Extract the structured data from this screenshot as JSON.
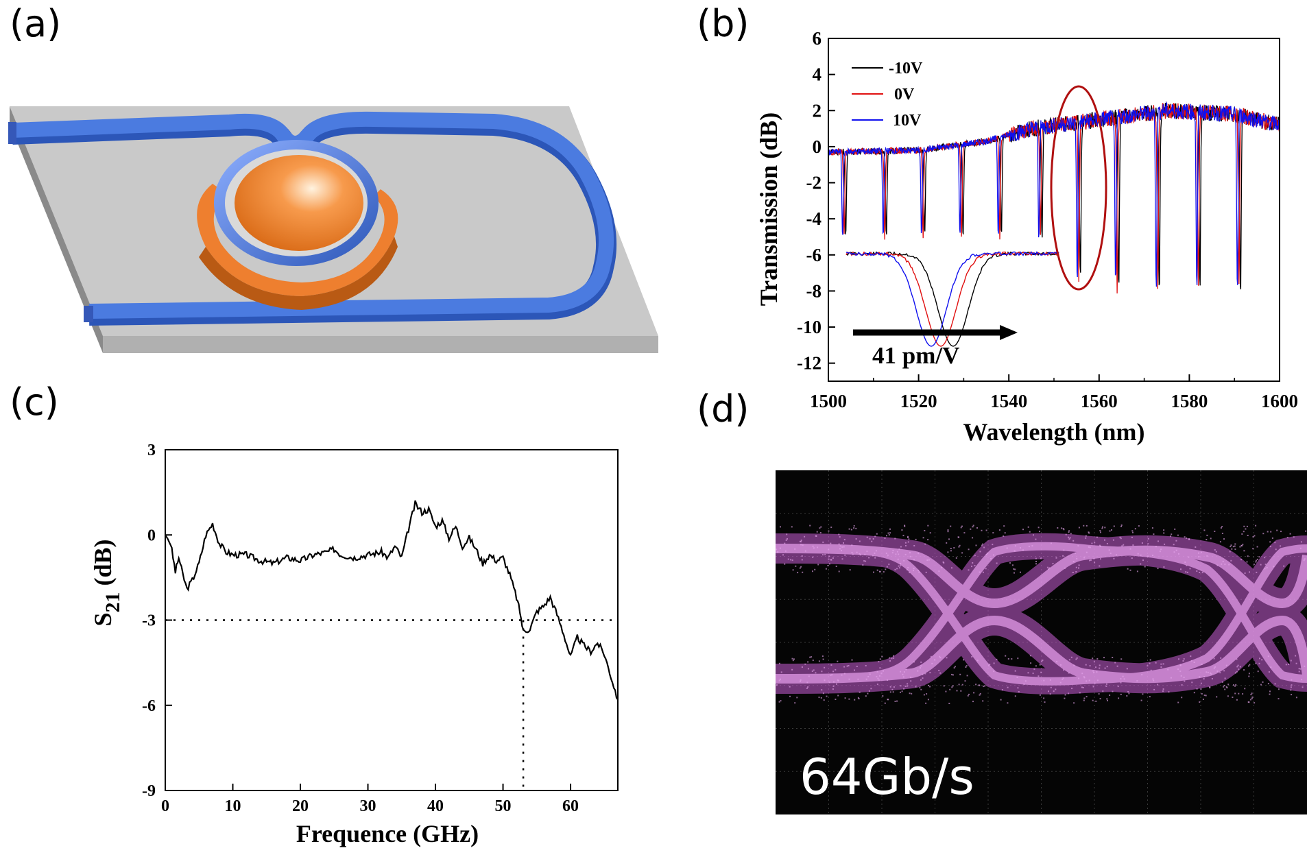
{
  "figure": {
    "panels": [
      {
        "label": "(a)"
      },
      {
        "label": "(b)"
      },
      {
        "label": "(c)"
      },
      {
        "label": "(d)"
      }
    ]
  },
  "colors": {
    "substrate": "#c9c9c9",
    "waveguide": "#3f6fd1",
    "electrode": "#ee7f2f",
    "eye": "#d070d8",
    "v_neg10": "#000000",
    "v_0": "#e01010",
    "v_10": "#1010ee",
    "ellipse": "#b01010"
  },
  "chart_data": [
    {
      "panel": "(b)",
      "type": "line",
      "xlabel": "Wavelength (nm)",
      "ylabel": "Transmission (dB)",
      "xlim": [
        1500,
        1600
      ],
      "ylim": [
        -13,
        6
      ],
      "xticks": [
        "1500",
        "1520",
        "1540",
        "1560",
        "1580",
        "1600"
      ],
      "yticks": [
        "-12",
        "-10",
        "-8",
        "-6",
        "-4",
        "-2",
        "0",
        "2",
        "4",
        "6"
      ],
      "legend": [
        "-10V",
        "0V",
        "10V"
      ],
      "legend_position": "top-left",
      "resonances_nm": [
        1503.5,
        1512.5,
        1521,
        1529.5,
        1538,
        1547,
        1555.5,
        1564,
        1573,
        1582,
        1591
      ],
      "resonance_depths_db": [
        -5,
        -5,
        -5,
        -5,
        -5,
        -5,
        -7.5,
        -8,
        -8,
        -8,
        -8
      ],
      "baseline_db": [
        [
          1500,
          -0.3
        ],
        [
          1520,
          -0.2
        ],
        [
          1535,
          0.3
        ],
        [
          1545,
          1.0
        ],
        [
          1560,
          1.5
        ],
        [
          1575,
          2.0
        ],
        [
          1590,
          1.8
        ],
        [
          1600,
          1.2
        ]
      ],
      "inset_annotation": "41 pm/V",
      "inset_min_db": [
        -11.1,
        -10.9,
        -11.0
      ]
    },
    {
      "panel": "(c)",
      "type": "line",
      "xlabel": "Frequence (GHz)",
      "ylabel_main": "S",
      "ylabel_sub": "21",
      "ylabel_unit": " (dB)",
      "xlim": [
        0,
        67
      ],
      "ylim": [
        -9,
        3
      ],
      "xticks": [
        "0",
        "10",
        "20",
        "30",
        "40",
        "50",
        "60"
      ],
      "yticks": [
        "-9",
        "-6",
        "-3",
        "0",
        "3"
      ],
      "threshold_db": -3,
      "cutoff_ghz": 53,
      "series": [
        {
          "x": [
            0,
            0.8,
            1.5,
            2,
            2.6,
            3.2,
            4,
            5,
            6,
            7,
            8,
            9,
            10,
            12,
            14,
            16,
            18,
            20,
            22,
            24,
            25,
            26,
            28,
            30,
            32,
            33,
            34,
            35,
            36,
            37,
            38,
            39,
            40,
            41,
            42,
            43,
            44,
            45,
            46,
            47,
            48,
            49,
            50,
            51,
            52,
            52.5,
            53,
            54,
            55,
            56,
            57,
            58,
            59,
            60,
            61,
            62,
            63,
            64,
            65,
            66,
            67
          ],
          "y": [
            0,
            -0.3,
            -1.3,
            -0.8,
            -1.4,
            -1.9,
            -1.6,
            -1.0,
            0.0,
            0.4,
            -0.3,
            -0.6,
            -0.7,
            -0.7,
            -0.9,
            -1.0,
            -0.8,
            -0.9,
            -0.7,
            -0.6,
            -0.5,
            -0.7,
            -0.8,
            -0.7,
            -0.6,
            -0.8,
            -0.4,
            -0.8,
            0.2,
            1.1,
            0.8,
            0.9,
            0.3,
            0.5,
            -0.1,
            0.3,
            -0.4,
            -0.1,
            -0.5,
            -1.0,
            -0.7,
            -0.9,
            -0.8,
            -1.4,
            -2.2,
            -2.7,
            -3.4,
            -3.3,
            -2.7,
            -2.5,
            -2.2,
            -2.8,
            -3.5,
            -4.3,
            -3.6,
            -3.9,
            -4.1,
            -3.8,
            -4.2,
            -5.0,
            -5.8
          ]
        }
      ]
    },
    {
      "panel": "(d)",
      "type": "eye-diagram",
      "annotation": "64Gb/s"
    }
  ]
}
